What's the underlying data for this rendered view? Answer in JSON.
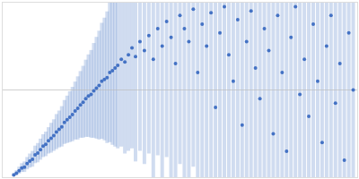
{
  "chart_data": {
    "type": "scatter",
    "x": [
      0.13,
      0.16,
      0.19,
      0.22,
      0.25,
      0.28,
      0.31,
      0.34,
      0.37,
      0.4,
      0.43,
      0.46,
      0.49,
      0.52,
      0.55,
      0.58,
      0.61,
      0.64,
      0.67,
      0.7,
      0.73,
      0.76,
      0.79,
      0.82,
      0.85,
      0.88,
      0.91,
      0.94,
      0.97,
      1.0,
      1.03,
      1.06,
      1.09,
      1.12,
      1.15,
      1.18,
      1.21,
      1.24,
      1.27,
      1.3,
      1.34,
      1.38,
      1.42,
      1.46,
      1.5,
      1.55,
      1.6,
      1.65,
      1.7,
      1.75,
      1.8,
      1.85,
      1.9,
      1.95,
      2.0,
      2.05,
      2.1,
      2.15,
      2.2,
      2.25,
      2.3,
      2.35,
      2.4,
      2.45,
      2.5,
      2.55,
      2.6,
      2.65,
      2.7,
      2.75,
      2.8,
      2.85,
      2.9,
      2.95,
      3.0,
      3.05,
      3.1,
      3.15,
      3.2,
      3.25,
      3.3,
      3.35,
      3.4,
      3.45,
      3.5,
      3.55,
      3.6,
      3.65,
      3.7,
      3.75,
      3.8,
      3.85,
      3.9,
      3.95
    ],
    "values": [
      0.03,
      0.05,
      0.08,
      0.11,
      0.12,
      0.16,
      0.19,
      0.21,
      0.26,
      0.28,
      0.32,
      0.36,
      0.38,
      0.42,
      0.45,
      0.48,
      0.52,
      0.55,
      0.58,
      0.63,
      0.66,
      0.69,
      0.72,
      0.76,
      0.79,
      0.83,
      0.86,
      0.9,
      0.93,
      0.95,
      0.99,
      1.02,
      1.05,
      1.1,
      1.12,
      1.14,
      1.2,
      1.22,
      1.25,
      1.28,
      1.35,
      1.32,
      1.4,
      1.48,
      1.38,
      1.55,
      1.45,
      1.62,
      1.35,
      1.7,
      1.5,
      1.78,
      1.6,
      1.3,
      1.85,
      1.7,
      1.55,
      1.92,
      1.2,
      1.75,
      1.5,
      1.88,
      0.8,
      1.65,
      1.95,
      1.4,
      1.1,
      1.8,
      0.6,
      1.55,
      1.9,
      1.25,
      0.9,
      1.7,
      1.45,
      0.5,
      1.85,
      1.2,
      0.3,
      1.6,
      1.95,
      0.95,
      1.35,
      0.7,
      1.75,
      1.1,
      0.4,
      1.5,
      1.85,
      0.85,
      1.3,
      0.2,
      1.65,
      1.0
    ],
    "errors": [
      0.02,
      0.03,
      0.04,
      0.05,
      0.06,
      0.07,
      0.08,
      0.09,
      0.1,
      0.11,
      0.12,
      0.13,
      0.14,
      0.15,
      0.17,
      0.18,
      0.2,
      0.21,
      0.23,
      0.25,
      0.27,
      0.29,
      0.31,
      0.33,
      0.36,
      0.38,
      0.41,
      0.44,
      0.47,
      0.5,
      0.54,
      0.58,
      0.62,
      0.66,
      0.7,
      0.75,
      0.8,
      0.85,
      0.9,
      0.95,
      1.0,
      1.05,
      1.1,
      1.15,
      1.2,
      1.25,
      1.3,
      1.35,
      1.4,
      1.45,
      1.5,
      1.55,
      1.6,
      1.65,
      1.7,
      1.7,
      1.8,
      1.8,
      1.9,
      1.9,
      2.0,
      2.0,
      2.0,
      2.0,
      2.0,
      2.0,
      2.0,
      2.0,
      2.0,
      2.0,
      2.0,
      2.0,
      2.0,
      2.0,
      2.0,
      2.0,
      2.0,
      2.0,
      2.0,
      2.0,
      2.0,
      2.0,
      2.0,
      2.0,
      2.0,
      2.0,
      2.0,
      2.0,
      2.0,
      2.0,
      2.0,
      2.0,
      2.0,
      2.0
    ],
    "reference_line": 1,
    "xlim": [
      0,
      4
    ],
    "ylim": [
      0,
      2
    ],
    "color": "#4472c4",
    "tick_labels": false,
    "grid": false
  }
}
